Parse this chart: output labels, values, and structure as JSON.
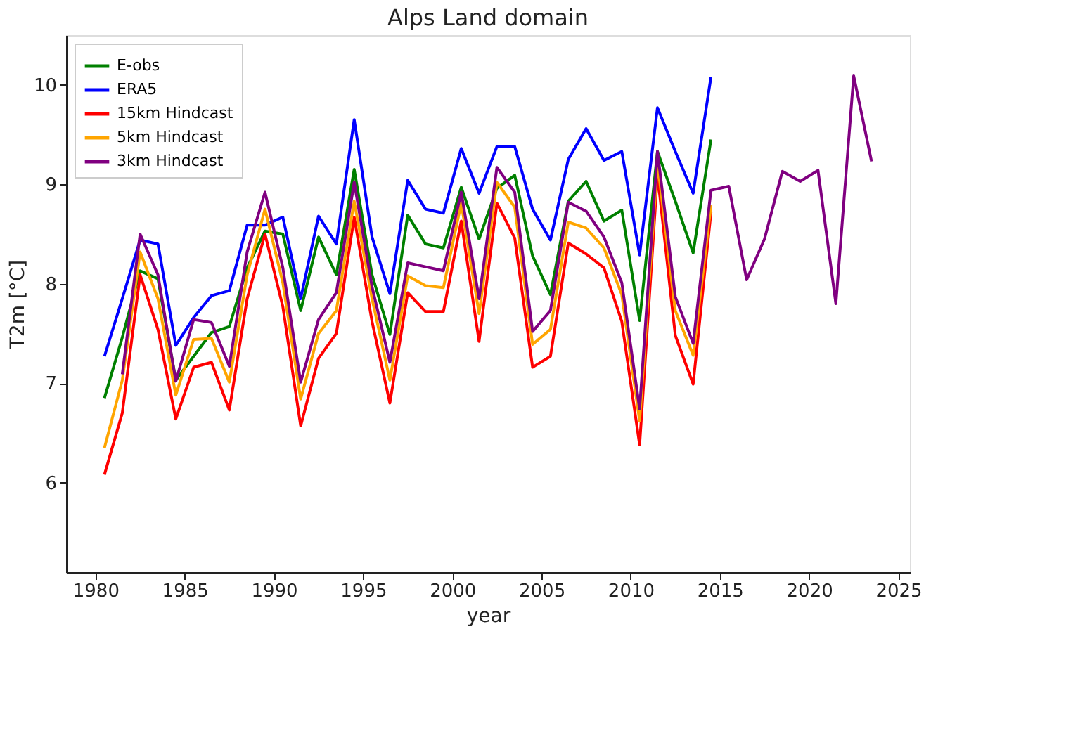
{
  "chart_data": {
    "type": "line",
    "title": "Alps Land domain",
    "xlabel": "year",
    "ylabel": "T2m [°C]",
    "xlim": [
      1978.35,
      2025.65
    ],
    "xticks": [
      1980,
      1985,
      1990,
      1995,
      2000,
      2005,
      2010,
      2015,
      2020,
      2025
    ],
    "ylim": [
      5.1,
      10.5
    ],
    "yticks": [
      6,
      7,
      8,
      9,
      10
    ],
    "grid": false,
    "legend": "top left",
    "marker": "none",
    "line_style": "solid",
    "series": [
      {
        "name": "E-obs",
        "color": "#008000",
        "x": [
          1980.5,
          1981.5,
          1982.5,
          1983.5,
          1984.5,
          1985.5,
          1986.5,
          1987.5,
          1988.5,
          1989.5,
          1990.5,
          1991.5,
          1992.5,
          1993.5,
          1994.5,
          1995.5,
          1996.5,
          1997.5,
          1998.5,
          1999.5,
          2000.5,
          2001.5,
          2002.5,
          2003.5,
          2004.5,
          2005.5,
          2006.5,
          2007.5,
          2008.5,
          2009.5,
          2010.5,
          2011.5,
          2012.5,
          2013.5,
          2014.5
        ],
        "values": [
          6.85,
          7.46,
          8.13,
          8.05,
          7.03,
          7.27,
          7.51,
          7.57,
          8.16,
          8.53,
          8.5,
          7.73,
          8.47,
          8.09,
          9.15,
          8.09,
          7.49,
          8.69,
          8.4,
          8.36,
          8.97,
          8.45,
          8.96,
          9.09,
          8.28,
          7.89,
          8.83,
          9.03,
          8.63,
          8.74,
          7.63,
          9.33,
          8.83,
          8.31,
          9.45
        ]
      },
      {
        "name": "ERA5",
        "color": "#0000ff",
        "x": [
          1980.5,
          1981.5,
          1982.5,
          1983.5,
          1984.5,
          1985.5,
          1986.5,
          1987.5,
          1988.5,
          1989.5,
          1990.5,
          1991.5,
          1992.5,
          1993.5,
          1994.5,
          1995.5,
          1996.5,
          1997.5,
          1998.5,
          1999.5,
          2000.5,
          2001.5,
          2002.5,
          2003.5,
          2004.5,
          2005.5,
          2006.5,
          2007.5,
          2008.5,
          2009.5,
          2010.5,
          2011.5,
          2012.5,
          2013.5,
          2014.5
        ],
        "values": [
          7.27,
          7.85,
          8.44,
          8.4,
          7.38,
          7.66,
          7.88,
          7.93,
          8.59,
          8.59,
          8.67,
          7.85,
          8.68,
          8.4,
          9.65,
          8.47,
          7.9,
          9.04,
          8.75,
          8.71,
          9.36,
          8.91,
          9.38,
          9.38,
          8.75,
          8.44,
          9.25,
          9.56,
          9.24,
          9.33,
          8.29,
          9.77,
          9.33,
          8.91,
          10.08
        ]
      },
      {
        "name": "15km Hindcast",
        "color": "#ff0000",
        "x": [
          1980.5,
          1981.5,
          1982.5,
          1983.5,
          1984.5,
          1985.5,
          1986.5,
          1987.5,
          1988.5,
          1989.5,
          1990.5,
          1991.5,
          1992.5,
          1993.5,
          1994.5,
          1995.5,
          1996.5,
          1997.5,
          1998.5,
          1999.5,
          2000.5,
          2001.5,
          2002.5,
          2003.5,
          2004.5,
          2005.5,
          2006.5,
          2007.5,
          2008.5,
          2009.5,
          2010.5,
          2011.5,
          2012.5,
          2013.5,
          2014.5
        ],
        "values": [
          6.08,
          6.7,
          8.09,
          7.54,
          6.64,
          7.16,
          7.21,
          6.73,
          7.85,
          8.5,
          7.77,
          6.57,
          7.25,
          7.5,
          8.67,
          7.62,
          6.8,
          7.91,
          7.72,
          7.72,
          8.63,
          7.42,
          8.81,
          8.46,
          7.16,
          7.27,
          8.41,
          8.3,
          8.16,
          7.62,
          6.38,
          9.1,
          7.48,
          6.99,
          8.72
        ]
      },
      {
        "name": "5km Hindcast",
        "color": "#ffa500",
        "x": [
          1980.5,
          1981.5,
          1982.5,
          1983.5,
          1984.5,
          1985.5,
          1986.5,
          1987.5,
          1988.5,
          1989.5,
          1990.5,
          1991.5,
          1992.5,
          1993.5,
          1994.5,
          1995.5,
          1996.5,
          1997.5,
          1998.5,
          1999.5,
          2000.5,
          2001.5,
          2002.5,
          2003.5,
          2004.5,
          2005.5,
          2006.5,
          2007.5,
          2008.5,
          2009.5,
          2010.5,
          2011.5,
          2012.5,
          2013.5,
          2014.5
        ],
        "values": [
          6.35,
          7.03,
          8.32,
          7.85,
          6.88,
          7.44,
          7.45,
          7.01,
          8.09,
          8.75,
          8.01,
          6.84,
          7.5,
          7.73,
          8.83,
          7.85,
          7.03,
          8.08,
          7.98,
          7.96,
          8.81,
          7.7,
          9.02,
          8.77,
          7.39,
          7.54,
          8.62,
          8.56,
          8.36,
          7.89,
          6.62,
          9.22,
          7.73,
          7.28,
          8.79
        ]
      },
      {
        "name": "3km Hindcast",
        "color": "#800080",
        "x": [
          1981.5,
          1982.5,
          1983.5,
          1984.5,
          1985.5,
          1986.5,
          1987.5,
          1988.5,
          1989.5,
          1990.5,
          1991.5,
          1992.5,
          1993.5,
          1994.5,
          1995.5,
          1996.5,
          1997.5,
          1998.5,
          1999.5,
          2000.5,
          2001.5,
          2002.5,
          2003.5,
          2004.5,
          2005.5,
          2006.5,
          2007.5,
          2008.5,
          2009.5,
          2010.5,
          2011.5,
          2012.5,
          2013.5,
          2014.5,
          2015.5,
          2016.5,
          2017.5,
          2018.5,
          2019.5,
          2020.5,
          2021.5,
          2022.5,
          2023.5
        ],
        "values": [
          7.09,
          8.5,
          8.09,
          7.02,
          7.64,
          7.61,
          7.17,
          8.32,
          8.92,
          8.16,
          7.01,
          7.64,
          7.91,
          9.02,
          7.97,
          7.21,
          8.21,
          8.17,
          8.13,
          8.92,
          7.85,
          9.17,
          8.92,
          7.52,
          7.73,
          8.82,
          8.73,
          8.47,
          8.01,
          6.74,
          9.33,
          7.87,
          7.4,
          8.94,
          8.98,
          8.04,
          8.45,
          9.13,
          9.03,
          9.14,
          7.8,
          10.09,
          9.23
        ]
      }
    ]
  }
}
